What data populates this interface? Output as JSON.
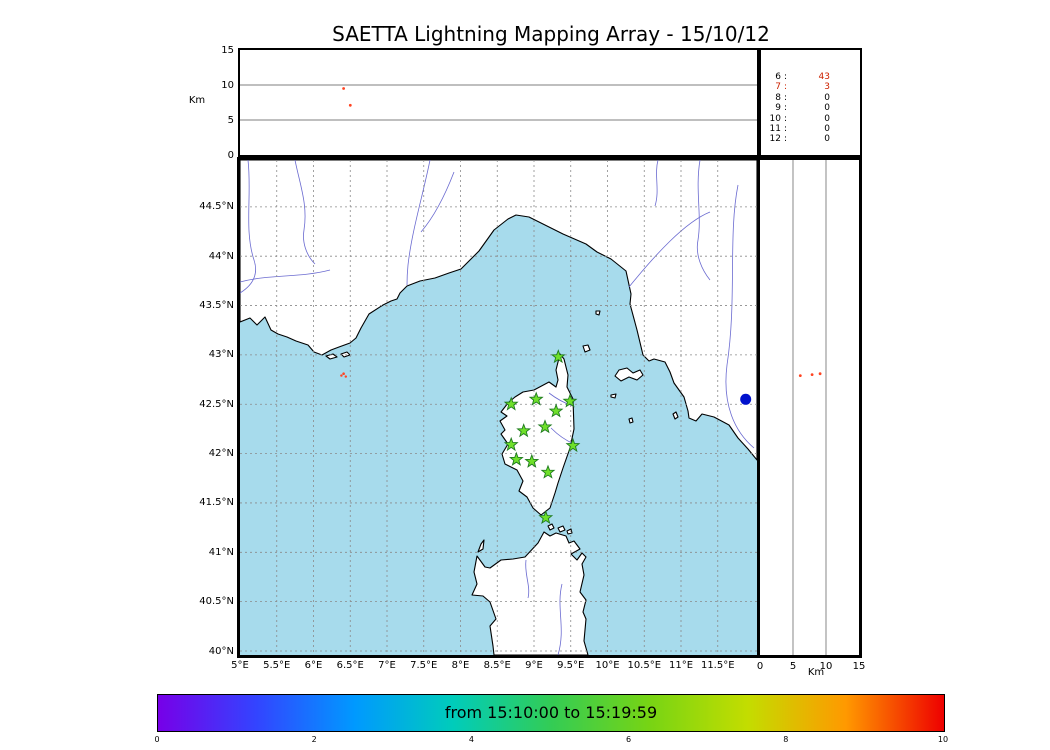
{
  "title": "SAETTA Lightning Mapping Array - 15/10/12",
  "colorbar": {
    "label": "from 15:10:00 to 15:19:59",
    "ticks": [
      "0",
      "2",
      "4",
      "6",
      "8",
      "10"
    ],
    "gradient": [
      "#7700e8",
      "#3344ff",
      "#0099ff",
      "#00ccbb",
      "#33cc55",
      "#77d414",
      "#c3dd00",
      "#ff9900",
      "#ee0000"
    ]
  },
  "labels": {
    "top_axis_unit": "Km",
    "right_axis_unit": "Km"
  },
  "station_marker": {
    "shape": "star",
    "fill": "#6fe02a",
    "stroke": "#1e7a1e"
  },
  "chart_data": [
    {
      "id": "altitude-vs-longitude",
      "type": "scatter",
      "ylabel": "Km",
      "ylim": [
        0,
        15
      ],
      "yticks": [
        0,
        5,
        10,
        15
      ],
      "xlim_lon": [
        5,
        12.03
      ],
      "grid": true,
      "points": [
        {
          "lon": 6.41,
          "alt": 9.5,
          "color": "#ff4422"
        },
        {
          "lon": 6.5,
          "alt": 7.1,
          "color": "#ff4422"
        }
      ]
    },
    {
      "id": "map",
      "type": "scatter",
      "xlim_lon": [
        5,
        12.03
      ],
      "ylim_lat": [
        39.96,
        44.98
      ],
      "grid": true,
      "xticks": [
        {
          "label": "5°E",
          "lon": 5
        },
        {
          "label": "5.5°E",
          "lon": 5.5
        },
        {
          "label": "6°E",
          "lon": 6
        },
        {
          "label": "6.5°E",
          "lon": 6.5
        },
        {
          "label": "7°E",
          "lon": 7
        },
        {
          "label": "7.5°E",
          "lon": 7.5
        },
        {
          "label": "8°E",
          "lon": 8
        },
        {
          "label": "8.5°E",
          "lon": 8.5
        },
        {
          "label": "9°E",
          "lon": 9
        },
        {
          "label": "9.5°E",
          "lon": 9.5
        },
        {
          "label": "10°E",
          "lon": 10
        },
        {
          "label": "10.5°E",
          "lon": 10.5
        },
        {
          "label": "11°E",
          "lon": 11
        },
        {
          "label": "11.5°E",
          "lon": 11.5
        }
      ],
      "yticks": [
        {
          "label": "44.5°N",
          "lat": 44.5
        },
        {
          "label": "44°N",
          "lat": 44
        },
        {
          "label": "43.5°N",
          "lat": 43.5
        },
        {
          "label": "43°N",
          "lat": 43
        },
        {
          "label": "42.5°N",
          "lat": 42.5
        },
        {
          "label": "42°N",
          "lat": 42
        },
        {
          "label": "41.5°N",
          "lat": 41.5
        },
        {
          "label": "41°N",
          "lat": 41
        },
        {
          "label": "40.5°N",
          "lat": 40.5
        },
        {
          "label": "40°N",
          "lat": 40
        }
      ],
      "stations": [
        {
          "lon": 9.33,
          "lat": 42.98
        },
        {
          "lon": 8.69,
          "lat": 42.5
        },
        {
          "lon": 9.03,
          "lat": 42.55
        },
        {
          "lon": 9.3,
          "lat": 42.43
        },
        {
          "lon": 9.49,
          "lat": 42.53
        },
        {
          "lon": 8.86,
          "lat": 42.23
        },
        {
          "lon": 9.15,
          "lat": 42.27
        },
        {
          "lon": 8.69,
          "lat": 42.09
        },
        {
          "lon": 9.53,
          "lat": 42.08
        },
        {
          "lon": 8.76,
          "lat": 41.94
        },
        {
          "lon": 8.97,
          "lat": 41.92
        },
        {
          "lon": 9.19,
          "lat": 41.81
        },
        {
          "lon": 9.16,
          "lat": 41.35
        }
      ],
      "sources": [
        {
          "lon": 11.88,
          "lat": 42.55,
          "color": "#0011cc",
          "r": 5.5
        },
        {
          "lon": 6.41,
          "lat": 42.81,
          "color": "#ff4422",
          "r": 1.3
        },
        {
          "lon": 6.44,
          "lat": 42.78,
          "color": "#ff4422",
          "r": 1.2
        },
        {
          "lon": 6.38,
          "lat": 42.79,
          "color": "#ff4422",
          "r": 1.2
        }
      ]
    },
    {
      "id": "altitude-vs-latitude",
      "type": "scatter",
      "xlabel": "Km",
      "xlim": [
        0,
        15
      ],
      "xticks": [
        0,
        5,
        10,
        15
      ],
      "ylim_lat": [
        39.96,
        44.98
      ],
      "grid": true,
      "points": [
        {
          "alt": 6.1,
          "lat": 42.79,
          "color": "#ff4422"
        },
        {
          "alt": 7.9,
          "lat": 42.8,
          "color": "#ff4422"
        },
        {
          "alt": 9.1,
          "lat": 42.81,
          "color": "#ff4422"
        }
      ]
    },
    {
      "id": "station-count-table",
      "type": "table",
      "rows": [
        {
          "level": "6",
          "value": "43",
          "level_color": "#000000",
          "value_color": "#cc2200"
        },
        {
          "level": "7",
          "value": "3",
          "level_color": "#cc2200",
          "value_color": "#cc2200"
        },
        {
          "level": "8",
          "value": "0",
          "level_color": "#000000",
          "value_color": "#000000"
        },
        {
          "level": "9",
          "value": "0",
          "level_color": "#000000",
          "value_color": "#000000"
        },
        {
          "level": "10",
          "value": "0",
          "level_color": "#000000",
          "value_color": "#000000"
        },
        {
          "level": "11",
          "value": "0",
          "level_color": "#000000",
          "value_color": "#000000"
        },
        {
          "level": "12",
          "value": "0",
          "level_color": "#000000",
          "value_color": "#000000"
        }
      ]
    }
  ]
}
